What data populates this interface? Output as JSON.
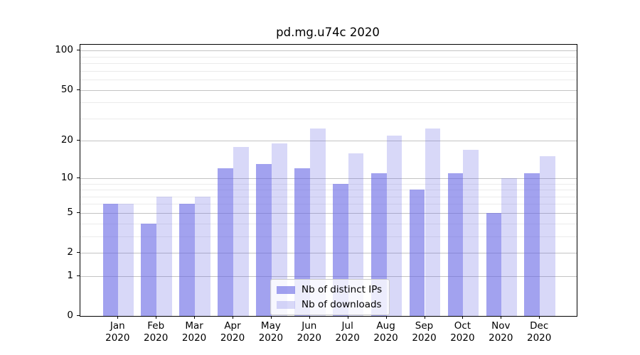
{
  "title": "pd.mg.u74c 2020",
  "colors": {
    "bar_base": "#6464e5",
    "bar_ips_alpha": 0.6,
    "bar_downloads_alpha": 0.25,
    "bar_ips_hex": "#a2a2ef",
    "bar_downloads_hex": "#d8d8f8",
    "grid_major": "#c3c3c3",
    "grid_minor": "#ebebeb",
    "spine": "#000000",
    "legend_border": "#cccccc"
  },
  "legend": {
    "items": [
      {
        "label": "Nb of distinct IPs",
        "series_key": "ips"
      },
      {
        "label": "Nb of downloads",
        "series_key": "downloads"
      }
    ]
  },
  "chart_data": {
    "type": "bar",
    "title": "pd.mg.u74c 2020",
    "xlabel": "",
    "ylabel": "",
    "y_scale": "log1p",
    "grid": true,
    "legend_position": "lower center",
    "categories": [
      "Jan 2020",
      "Feb 2020",
      "Mar 2020",
      "Apr 2020",
      "May 2020",
      "Jun 2020",
      "Jul 2020",
      "Aug 2020",
      "Sep 2020",
      "Oct 2020",
      "Nov 2020",
      "Dec 2020"
    ],
    "series": [
      {
        "name": "Nb of distinct IPs",
        "values": [
          6,
          4,
          6,
          12,
          13,
          12,
          9,
          11,
          8,
          11,
          5,
          11
        ]
      },
      {
        "name": "Nb of downloads",
        "values": [
          6,
          7,
          7,
          18,
          19,
          25,
          16,
          22,
          25,
          17,
          10,
          15
        ]
      }
    ],
    "y_ticks": [
      0,
      1,
      2,
      5,
      10,
      20,
      50,
      100
    ],
    "y_minor_ticks": [
      3,
      4,
      6,
      7,
      8,
      9,
      30,
      40,
      60,
      70,
      80,
      90
    ],
    "ylim": [
      0,
      110
    ]
  }
}
